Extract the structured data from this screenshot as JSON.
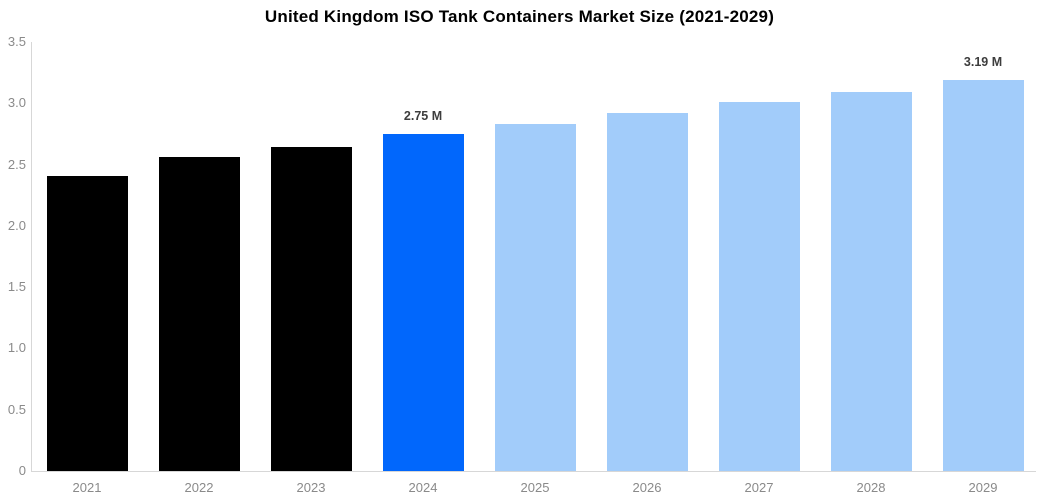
{
  "page": {
    "title": "United Kingdom ISO Tank Containers Market Size (2021-2029)"
  },
  "chart_data": {
    "type": "bar",
    "title": "United Kingdom ISO Tank Containers Market Size (2021-2029)",
    "categories": [
      "2021",
      "2022",
      "2023",
      "2024",
      "2025",
      "2026",
      "2027",
      "2028",
      "2029"
    ],
    "values": [
      2.41,
      2.56,
      2.64,
      2.75,
      2.83,
      2.92,
      3.01,
      3.09,
      3.19
    ],
    "unit": "M",
    "data_labels": [
      "",
      "",
      "",
      "2.75 M",
      "",
      "",
      "",
      "",
      "3.19 M"
    ],
    "bar_colors": [
      "#000000",
      "#000000",
      "#000000",
      "#0167fc",
      "#a2ccfa",
      "#a2ccfa",
      "#a2ccfa",
      "#a2ccfa",
      "#a2ccfa"
    ],
    "xlabel": "",
    "ylabel": "",
    "ylim": [
      0,
      3.5
    ],
    "ytick_values": [
      0,
      0.5,
      1.0,
      1.5,
      2.0,
      2.5,
      3.0,
      3.5
    ],
    "ytick_labels": [
      "0",
      "0.5",
      "1.0",
      "1.5",
      "2.0",
      "2.5",
      "3.0",
      "3.5"
    ],
    "grid": false,
    "legend": false
  },
  "colors": {
    "background": "#ffffff",
    "axis_line": "#d7d7d7",
    "tick_text": "#8a8a8a",
    "value_label_text": "#3d3d3d",
    "title_text": "#000000",
    "bar_historical": "#000000",
    "bar_current": "#0167fc",
    "bar_forecast": "#a2ccfa"
  }
}
